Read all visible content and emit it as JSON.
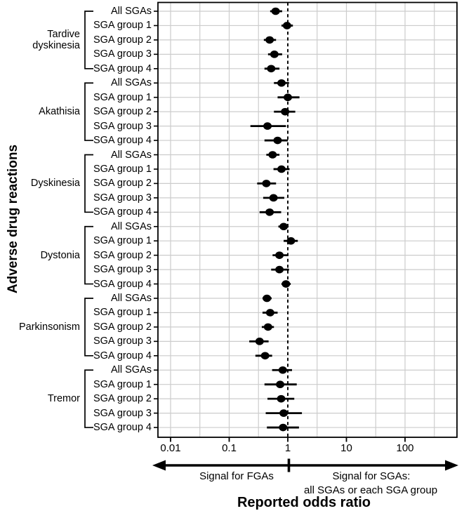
{
  "figure": {
    "y_axis_title": "Adverse drug reactions",
    "x_axis_title": "Reported odds ratio",
    "arrow_left_label": "Signal for FGAs",
    "arrow_right_label_line1": "Signal for SGAs:",
    "arrow_right_label_line2": "all SGAs or each SGA group"
  },
  "chart_data": {
    "type": "scatter",
    "subtype": "forest-plot",
    "x_axis": {
      "scale": "log",
      "ticks": [
        0.01,
        0.1,
        1,
        10,
        100
      ],
      "tick_labels": [
        "0.01",
        "0.1",
        "1",
        "10",
        "100"
      ],
      "range": [
        0.0061,
        770
      ],
      "reference_line": 1,
      "minor_gridlines": [
        0.01,
        0.0316,
        0.1,
        0.316,
        3.162,
        10,
        31.62,
        100,
        316.2
      ]
    },
    "grid": "on",
    "colors": {
      "data": "#000000",
      "gridline": "#cccccc",
      "border": "#000000",
      "reference": "#000000"
    },
    "sections": [
      {
        "name": "Tardive dyskinesia",
        "rows": [
          {
            "label": "All SGAs",
            "or": 0.62,
            "ci": [
              0.5,
              0.8
            ]
          },
          {
            "label": "SGA group 1",
            "or": 0.97,
            "ci": [
              0.78,
              1.22
            ]
          },
          {
            "label": "SGA group 2",
            "or": 0.49,
            "ci": [
              0.39,
              0.63
            ]
          },
          {
            "label": "SGA group 3",
            "or": 0.59,
            "ci": [
              0.46,
              0.8
            ]
          },
          {
            "label": "SGA group 4",
            "or": 0.52,
            "ci": [
              0.4,
              0.72
            ]
          }
        ]
      },
      {
        "name": "Akathisia",
        "rows": [
          {
            "label": "All SGAs",
            "or": 0.78,
            "ci": [
              0.58,
              1.05
            ]
          },
          {
            "label": "SGA group 1",
            "or": 1.0,
            "ci": [
              0.67,
              1.58
            ]
          },
          {
            "label": "SGA group 2",
            "or": 0.9,
            "ci": [
              0.58,
              1.34
            ]
          },
          {
            "label": "SGA group 3",
            "or": 0.45,
            "ci": [
              0.23,
              0.93
            ]
          },
          {
            "label": "SGA group 4",
            "or": 0.67,
            "ci": [
              0.4,
              1.0
            ]
          }
        ]
      },
      {
        "name": "Dyskinesia",
        "rows": [
          {
            "label": "All SGAs",
            "or": 0.55,
            "ci": [
              0.43,
              0.72
            ]
          },
          {
            "label": "SGA group 1",
            "or": 0.78,
            "ci": [
              0.57,
              1.07
            ]
          },
          {
            "label": "SGA group 2",
            "or": 0.43,
            "ci": [
              0.3,
              0.63
            ]
          },
          {
            "label": "SGA group 3",
            "or": 0.57,
            "ci": [
              0.38,
              0.87
            ]
          },
          {
            "label": "SGA group 4",
            "or": 0.49,
            "ci": [
              0.33,
              0.77
            ]
          }
        ]
      },
      {
        "name": "Dystonia",
        "rows": [
          {
            "label": "All SGAs",
            "or": 0.85,
            "ci": [
              0.69,
              1.03
            ]
          },
          {
            "label": "SGA group 1",
            "or": 1.13,
            "ci": [
              0.85,
              1.48
            ]
          },
          {
            "label": "SGA group 2",
            "or": 0.72,
            "ci": [
              0.55,
              1.0
            ]
          },
          {
            "label": "SGA group 3",
            "or": 0.72,
            "ci": [
              0.52,
              1.05
            ]
          },
          {
            "label": "SGA group 4",
            "or": 0.93,
            "ci": [
              0.78,
              1.12
            ]
          }
        ]
      },
      {
        "name": "Parkinsonism",
        "rows": [
          {
            "label": "All SGAs",
            "or": 0.44,
            "ci": [
              0.37,
              0.53
            ]
          },
          {
            "label": "SGA group 1",
            "or": 0.5,
            "ci": [
              0.37,
              0.67
            ]
          },
          {
            "label": "SGA group 2",
            "or": 0.46,
            "ci": [
              0.36,
              0.58
            ]
          },
          {
            "label": "SGA group 3",
            "or": 0.33,
            "ci": [
              0.22,
              0.47
            ]
          },
          {
            "label": "SGA group 4",
            "or": 0.41,
            "ci": [
              0.28,
              0.54
            ]
          }
        ]
      },
      {
        "name": "Tremor",
        "rows": [
          {
            "label": "All SGAs",
            "or": 0.82,
            "ci": [
              0.54,
              1.18
            ]
          },
          {
            "label": "SGA group 1",
            "or": 0.74,
            "ci": [
              0.4,
              1.42
            ]
          },
          {
            "label": "SGA group 2",
            "or": 0.77,
            "ci": [
              0.45,
              1.29
            ]
          },
          {
            "label": "SGA group 3",
            "or": 0.85,
            "ci": [
              0.42,
              1.74
            ]
          },
          {
            "label": "SGA group 4",
            "or": 0.83,
            "ci": [
              0.44,
              1.55
            ]
          }
        ]
      }
    ],
    "title": "",
    "xlabel": "Reported odds ratio",
    "ylabel": "Adverse drug reactions",
    "legend": "off"
  }
}
